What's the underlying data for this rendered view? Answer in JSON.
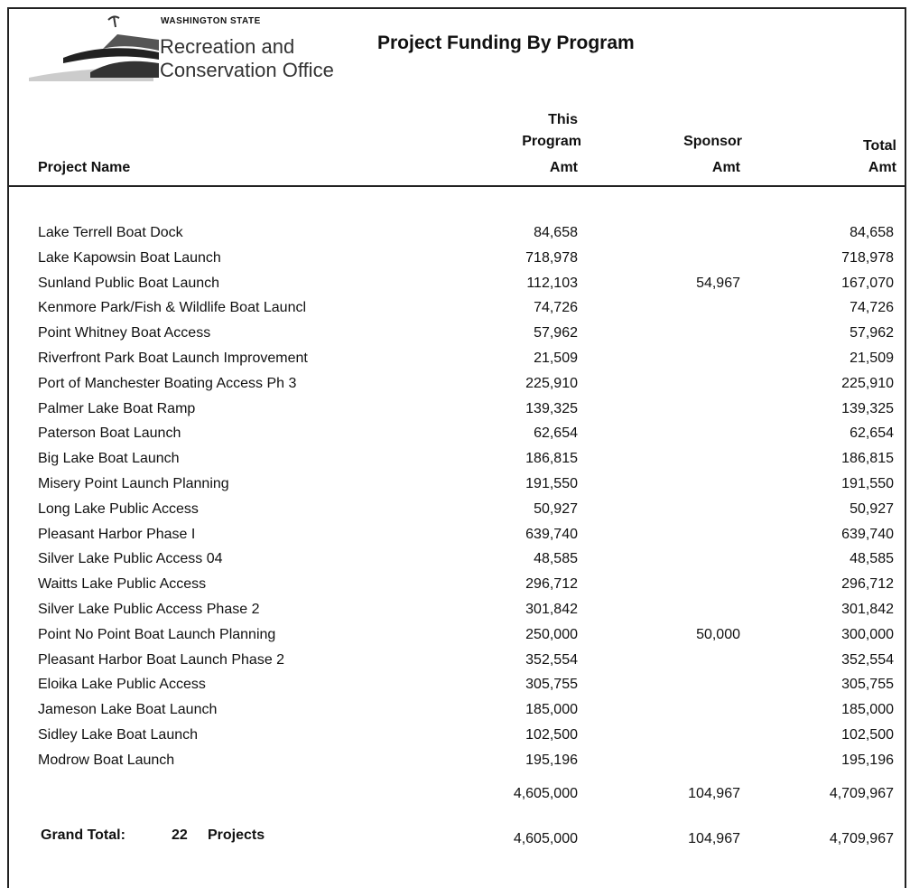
{
  "logo": {
    "state": "WASHINGTON STATE",
    "line1": "Recreation and",
    "line2": "Conservation Office"
  },
  "header": {
    "title": "Project Funding By Program"
  },
  "table": {
    "columns": {
      "name": "Project Name",
      "program": [
        "This",
        "Program",
        "Amt"
      ],
      "sponsor": [
        "Sponsor",
        "Amt"
      ],
      "total": [
        "Total",
        "Amt"
      ]
    },
    "rows": [
      [
        "Lake Terrell Boat Dock",
        "84,658",
        null,
        "84,658"
      ],
      [
        "Lake Kapowsin Boat Launch",
        "718,978",
        null,
        "718,978"
      ],
      [
        "Sunland Public Boat Launch",
        "112,103",
        "54,967",
        "167,070"
      ],
      [
        "Kenmore Park/Fish & Wildlife Boat Launcl",
        "74,726",
        null,
        "74,726"
      ],
      [
        "Point Whitney Boat Access",
        "57,962",
        null,
        "57,962"
      ],
      [
        "Riverfront Park Boat Launch Improvement",
        "21,509",
        null,
        "21,509"
      ],
      [
        "Port of Manchester Boating Access Ph 3",
        "225,910",
        null,
        "225,910"
      ],
      [
        "Palmer Lake Boat Ramp",
        "139,325",
        null,
        "139,325"
      ],
      [
        "Paterson Boat Launch",
        "62,654",
        null,
        "62,654"
      ],
      [
        "Big Lake Boat Launch",
        "186,815",
        null,
        "186,815"
      ],
      [
        "Misery Point Launch Planning",
        "191,550",
        null,
        "191,550"
      ],
      [
        "Long Lake Public Access",
        "50,927",
        null,
        "50,927"
      ],
      [
        "Pleasant Harbor Phase I",
        "639,740",
        null,
        "639,740"
      ],
      [
        "Silver Lake Public Access 04",
        "48,585",
        null,
        "48,585"
      ],
      [
        "Waitts Lake Public Access",
        "296,712",
        null,
        "296,712"
      ],
      [
        "Silver Lake Public Access Phase 2",
        "301,842",
        null,
        "301,842"
      ],
      [
        "Point No Point Boat Launch Planning",
        "250,000",
        "50,000",
        "300,000"
      ],
      [
        "Pleasant Harbor Boat Launch Phase 2",
        "352,554",
        null,
        "352,554"
      ],
      [
        "Eloika Lake Public Access",
        "305,755",
        null,
        "305,755"
      ],
      [
        "Jameson Lake Boat Launch",
        "185,000",
        null,
        "185,000"
      ],
      [
        "Sidley Lake Boat Launch",
        "102,500",
        null,
        "102,500"
      ],
      [
        "Modrow Boat Launch",
        "195,196",
        null,
        "195,196"
      ]
    ],
    "subtotal": [
      "4,605,000",
      "104,967",
      "4,709,967"
    ],
    "grand_total": {
      "label": "Grand Total:",
      "count": "22",
      "unit": "Projects",
      "values": [
        "4,605,000",
        "104,967",
        "4,709,967"
      ]
    }
  }
}
